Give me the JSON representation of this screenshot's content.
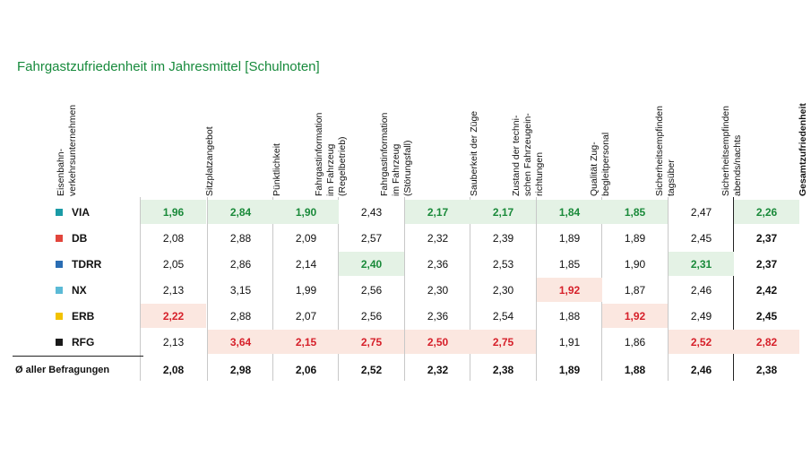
{
  "chart_data": {
    "type": "table",
    "title": "Fahrgastzufriedenheit im Jahresmittel [Schulnoten]",
    "row_header": "Eisenbahn-\nverkehrsunternehmen",
    "columns": [
      "Sitzplatzangebot",
      "Pünktlichkeit",
      "Fahrgastinformation\nim Fahrzeug\n(Regelbetrieb)",
      "Fahrgastinformation\nim Fahrzeug\n(Störungsfall)",
      "Sauberkeit der Züge",
      "Zustand der techni-\nschen Fahrzeugein-\nrichtungen",
      "Qualität Zug-\nbegleitpersonal",
      "Sicherheitsempfinden\ntagsüber",
      "Sicherheitsempfinden\nabends/nachts",
      "Gesamtzufriedenheit"
    ],
    "rows": [
      {
        "name": "VIA",
        "color": "#1a9ba6",
        "values": [
          "1,96",
          "2,84",
          "1,90",
          "2,43",
          "2,17",
          "2,17",
          "1,84",
          "1,85",
          "2,47",
          "2,26"
        ],
        "marks": [
          "best",
          "best",
          "best",
          "",
          "best",
          "best",
          "best",
          "best",
          "",
          "best"
        ]
      },
      {
        "name": "DB",
        "color": "#e2453c",
        "values": [
          "2,08",
          "2,88",
          "2,09",
          "2,57",
          "2,32",
          "2,39",
          "1,89",
          "1,89",
          "2,45",
          "2,37"
        ],
        "marks": [
          "",
          "",
          "",
          "",
          "",
          "",
          "",
          "",
          "",
          ""
        ]
      },
      {
        "name": "TDRR",
        "color": "#2a6db3",
        "values": [
          "2,05",
          "2,86",
          "2,14",
          "2,40",
          "2,36",
          "2,53",
          "1,85",
          "1,90",
          "2,31",
          "2,37"
        ],
        "marks": [
          "",
          "",
          "",
          "best",
          "",
          "",
          "",
          "",
          "best",
          ""
        ]
      },
      {
        "name": "NX",
        "color": "#5bbad6",
        "values": [
          "2,13",
          "3,15",
          "1,99",
          "2,56",
          "2,30",
          "2,30",
          "1,92",
          "1,87",
          "2,46",
          "2,42"
        ],
        "marks": [
          "",
          "",
          "",
          "",
          "",
          "",
          "worst",
          "",
          "",
          ""
        ]
      },
      {
        "name": "ERB",
        "color": "#f2c200",
        "values": [
          "2,22",
          "2,88",
          "2,07",
          "2,56",
          "2,36",
          "2,54",
          "1,88",
          "1,92",
          "2,49",
          "2,45"
        ],
        "marks": [
          "worst",
          "",
          "",
          "",
          "",
          "",
          "",
          "worst",
          "",
          ""
        ]
      },
      {
        "name": "RFG",
        "color": "#1a1a1a",
        "values": [
          "2,13",
          "3,64",
          "2,15",
          "2,75",
          "2,50",
          "2,75",
          "1,91",
          "1,86",
          "2,52",
          "2,82"
        ],
        "marks": [
          "",
          "worst",
          "worst",
          "worst",
          "worst",
          "worst",
          "",
          "",
          "worst",
          "worst"
        ]
      }
    ],
    "average": {
      "name": "Ø aller Befragungen",
      "values": [
        "2,08",
        "2,98",
        "2,06",
        "2,52",
        "2,32",
        "2,38",
        "1,89",
        "1,88",
        "2,46",
        "2,38"
      ]
    }
  }
}
